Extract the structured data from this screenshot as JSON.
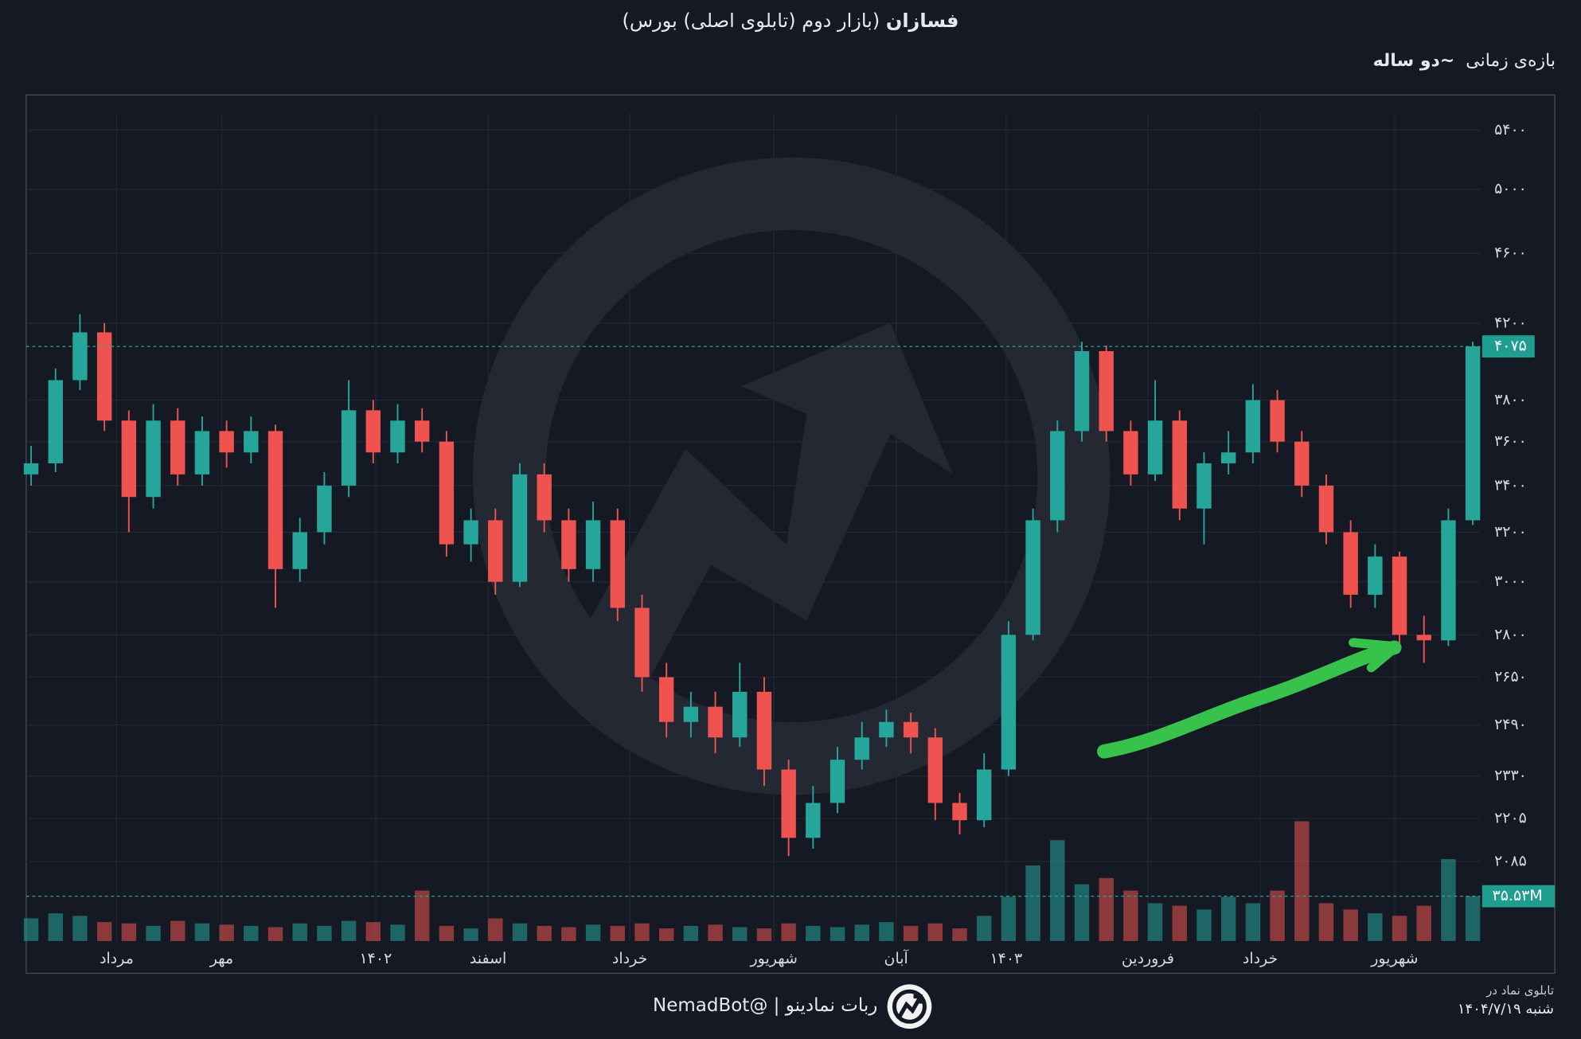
{
  "chart_data": {
    "type": "candlestick",
    "title": "فسازان",
    "subtitle": "(بازار دوم (تابلوی اصلی) بورس)",
    "range_label": "بازه‌ی زمانی",
    "range_value": "~دو ساله",
    "open": [
      3450,
      3500,
      3900,
      4150,
      3700,
      3350,
      3700,
      3450,
      3650,
      3550,
      3650,
      3050,
      3200,
      3400,
      3750,
      3550,
      3700,
      3600,
      3150,
      3250,
      3000,
      3450,
      3250,
      3050,
      3250,
      2900,
      2650,
      2500,
      2550,
      2450,
      2600,
      2350,
      2150,
      2250,
      2380,
      2450,
      2500,
      2450,
      2250,
      2200,
      2350,
      2800,
      3250,
      3650,
      4050,
      3650,
      3450,
      3700,
      3300,
      3500,
      3550,
      3800,
      3600,
      3400,
      3200,
      2950,
      3100,
      2800,
      2780,
      3250
    ],
    "high": [
      3580,
      3960,
      4250,
      4200,
      3750,
      3780,
      3760,
      3720,
      3700,
      3720,
      3680,
      3260,
      3460,
      3900,
      3800,
      3780,
      3760,
      3650,
      3300,
      3300,
      3500,
      3500,
      3300,
      3330,
      3300,
      2950,
      2700,
      2600,
      2600,
      2700,
      2650,
      2380,
      2300,
      2420,
      2500,
      2540,
      2530,
      2480,
      2280,
      2400,
      2850,
      3300,
      3700,
      4100,
      4080,
      3700,
      3900,
      3750,
      3550,
      3650,
      3880,
      3850,
      3650,
      3450,
      3250,
      3150,
      3120,
      2870,
      3300,
      4100
    ],
    "low": [
      3400,
      3460,
      3850,
      3650,
      3200,
      3300,
      3400,
      3400,
      3480,
      3500,
      2900,
      3000,
      3150,
      3350,
      3500,
      3500,
      3550,
      3100,
      3080,
      2950,
      2980,
      3200,
      3000,
      3000,
      2850,
      2600,
      2450,
      2450,
      2400,
      2420,
      2300,
      2100,
      2120,
      2220,
      2350,
      2420,
      2400,
      2200,
      2160,
      2180,
      2330,
      2780,
      3200,
      3600,
      3600,
      3400,
      3420,
      3250,
      3150,
      3450,
      3500,
      3550,
      3350,
      3150,
      2900,
      2900,
      2750,
      2700,
      2760,
      3230
    ],
    "close": [
      3500,
      3900,
      4150,
      3700,
      3350,
      3700,
      3450,
      3650,
      3550,
      3650,
      3050,
      3200,
      3400,
      3750,
      3550,
      3700,
      3600,
      3150,
      3250,
      3000,
      3450,
      3250,
      3050,
      3250,
      2900,
      2650,
      2500,
      2550,
      2450,
      2600,
      2350,
      2150,
      2250,
      2380,
      2450,
      2500,
      2450,
      2250,
      2200,
      2350,
      2800,
      3250,
      3650,
      4050,
      3650,
      3450,
      3700,
      3300,
      3500,
      3550,
      3800,
      3600,
      3400,
      3200,
      2950,
      3100,
      2800,
      2780,
      3250,
      4075
    ],
    "volume": [
      18,
      22,
      20,
      15,
      14,
      12,
      16,
      14,
      13,
      12,
      11,
      14,
      12,
      16,
      15,
      13,
      40,
      12,
      10,
      18,
      14,
      12,
      11,
      13,
      12,
      14,
      10,
      12,
      13,
      11,
      10,
      14,
      12,
      11,
      13,
      15,
      12,
      14,
      10,
      20,
      35,
      60,
      80,
      45,
      50,
      40,
      30,
      28,
      25,
      35,
      30,
      40,
      95,
      30,
      25,
      22,
      20,
      28,
      65,
      35.53
    ],
    "volume_lim": [
      0,
      100
    ],
    "xlim": [
      -0.2,
      59.3
    ],
    "xticks": [
      {
        "value": 3.5,
        "label": "مرداد"
      },
      {
        "value": 7.8,
        "label": "مهر"
      },
      {
        "value": 14.1,
        "label": "۱۴۰۲"
      },
      {
        "value": 18.7,
        "label": "اسفند"
      },
      {
        "value": 24.5,
        "label": "خرداد"
      },
      {
        "value": 30.4,
        "label": "شهریور"
      },
      {
        "value": 35.4,
        "label": "آبان"
      },
      {
        "value": 39.9,
        "label": "۱۴۰۳"
      },
      {
        "value": 45.7,
        "label": "فروردین"
      },
      {
        "value": 50.3,
        "label": "خرداد"
      },
      {
        "value": 55.8,
        "label": "شهریور"
      }
    ],
    "ylim": [
      1880,
      5520
    ],
    "log_scale": true,
    "yticks": [
      {
        "value": 2085,
        "label": "۲۰۸۵"
      },
      {
        "value": 2205,
        "label": "۲۲۰۵"
      },
      {
        "value": 2330,
        "label": "۲۳۳۰"
      },
      {
        "value": 2490,
        "label": "۲۴۹۰"
      },
      {
        "value": 2650,
        "label": "۲۶۵۰"
      },
      {
        "value": 2800,
        "label": "۲۸۰۰"
      },
      {
        "value": 3000,
        "label": "۳۰۰۰"
      },
      {
        "value": 3200,
        "label": "۳۲۰۰"
      },
      {
        "value": 3400,
        "label": "۳۴۰۰"
      },
      {
        "value": 3600,
        "label": "۳۶۰۰"
      },
      {
        "value": 3800,
        "label": "۳۸۰۰"
      },
      {
        "value": 4200,
        "label": "۴۲۰۰"
      },
      {
        "value": 4600,
        "label": "۴۶۰۰"
      },
      {
        "value": 5000,
        "label": "۵۰۰۰"
      },
      {
        "value": 5400,
        "label": "۵۴۰۰"
      }
    ],
    "last_price": {
      "value": 4075,
      "label": "۴۰۷۵"
    },
    "last_volume": {
      "value": 35.53,
      "label": "۳۵.۵۳M"
    },
    "grid": true,
    "up_color": "#26a69a",
    "down_color": "#ef5350"
  },
  "footer": {
    "date_prefix": "تابلوی نماد در",
    "date": "شنبه ۱۴۰۴/۷/۱۹",
    "bot": "ربات نمادینو | @NemadBot"
  }
}
